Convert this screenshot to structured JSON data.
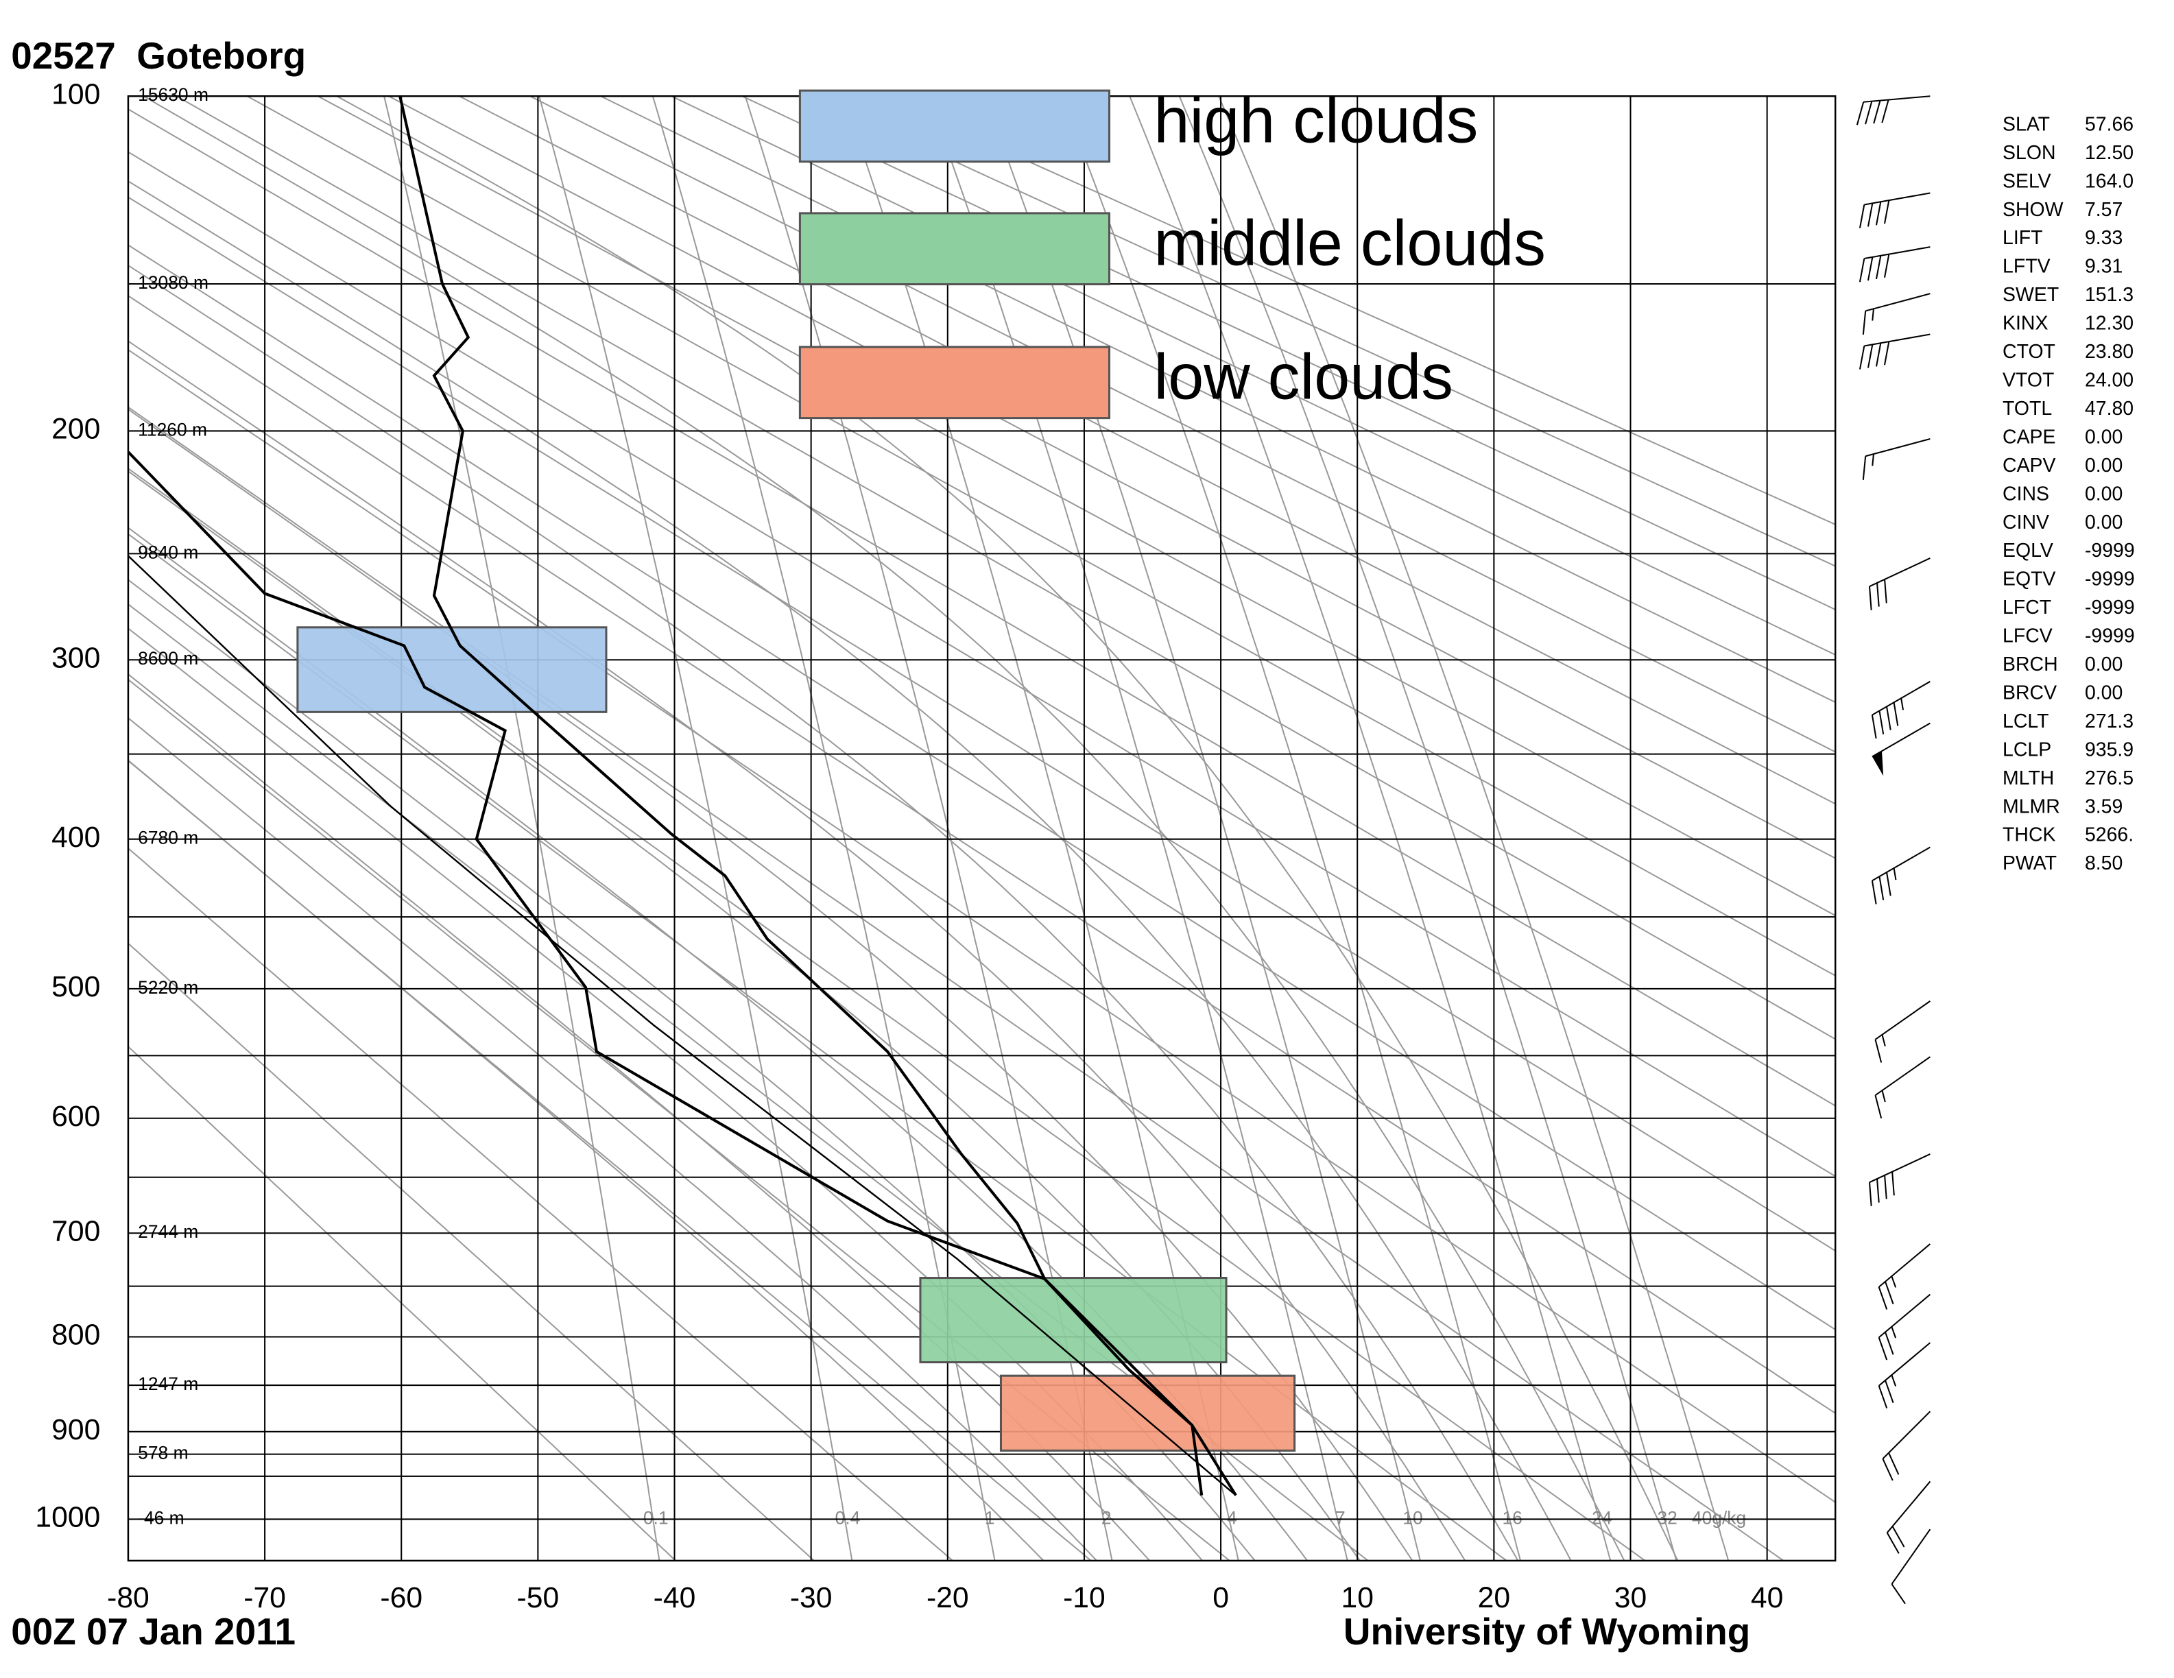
{
  "chart_data": {
    "type": "sounding",
    "title": "02527  Goteborg",
    "date": "00Z 07 Jan 2011",
    "source": "University of Wyoming",
    "xlim": [
      -80,
      45
    ],
    "xticks": [
      -80,
      -70,
      -60,
      -50,
      -40,
      -30,
      -20,
      -10,
      0,
      10,
      20,
      30,
      40
    ],
    "ylim": [
      100,
      1050
    ],
    "yticks": [
      100,
      200,
      300,
      400,
      500,
      600,
      700,
      800,
      900,
      1000
    ],
    "isobars": [
      150,
      250,
      350,
      450,
      550,
      650,
      750,
      850,
      925,
      950
    ],
    "heights": [
      {
        "p": 100,
        "label": "15630 m"
      },
      {
        "p": 150,
        "label": "13080 m"
      },
      {
        "p": 200,
        "label": "11260 m"
      },
      {
        "p": 250,
        "label": "9840 m"
      },
      {
        "p": 300,
        "label": "8600 m"
      },
      {
        "p": 400,
        "label": "6780 m"
      },
      {
        "p": 500,
        "label": "5220 m"
      },
      {
        "p": 700,
        "label": "2744 m"
      },
      {
        "p": 850,
        "label": "1247 m"
      },
      {
        "p": 925,
        "label": "578 m"
      },
      {
        "p": 1000,
        "label": "-46 m"
      }
    ],
    "mixing_ratios": [
      0.1,
      0.4,
      1,
      2,
      4,
      7,
      10,
      16,
      24,
      32,
      {
        "value": 40,
        "label": "40g/kg"
      }
    ],
    "dry_adiabats": [
      230,
      240,
      250,
      260,
      270,
      280,
      290,
      300,
      310,
      320,
      330,
      340,
      350,
      360,
      370,
      380,
      390,
      400,
      410,
      420,
      430,
      440,
      450,
      460,
      470,
      480
    ],
    "moist_adiabats": [
      -16,
      -12,
      -8,
      -4,
      0,
      4,
      8,
      12,
      16,
      20,
      24,
      28,
      32
    ],
    "series": [
      {
        "color": "#000000",
        "p": [
          972,
          893,
          841,
          743,
          691,
          630,
          547,
          465,
          423,
          397,
          325,
          293,
          269,
          200,
          180,
          167,
          150,
          100
        ],
        "values": [
          1.1,
          -2.1,
          -5.7,
          -12.9,
          -14.9,
          -19.0,
          -24.4,
          -33.2,
          -36.3,
          -40.2,
          -50.6,
          -55.7,
          -57.6,
          -55.5,
          -57.6,
          -55.1,
          -57.0,
          -60.1
        ]
      },
      {
        "color": "#000000",
        "p": [
          972,
          893,
          834,
          743,
          689,
          547,
          499,
          400,
          337,
          314,
          293,
          268,
          208
        ],
        "values": [
          -1.4,
          -2.1,
          -6.7,
          -12.9,
          -24.4,
          -45.7,
          -46.5,
          -54.5,
          -52.4,
          -58.3,
          -59.8,
          -70.0,
          -80.0
        ]
      },
      {
        "color": "#000000",
        "p": [
          972,
          724,
          527,
          380,
          251
        ],
        "values": [
          1.1,
          -19.3,
          -41.5,
          -60.8,
          -80.0
        ]
      }
    ],
    "clouds": [
      {
        "name": "high clouds",
        "color": "#a4c6ea",
        "tlim": [
          -67.6,
          -45.0
        ],
        "plim": [
          284,
          327
        ]
      },
      {
        "name": "middle clouds",
        "color": "#8dcf9e",
        "tlim": [
          -22.0,
          0.4
        ],
        "plim": [
          742,
          826
        ]
      },
      {
        "name": "low clouds",
        "color": "#f4997b",
        "tlim": [
          -16.1,
          5.4
        ],
        "plim": [
          840,
          921
        ]
      }
    ],
    "winds": {
      "p": [
        100,
        124,
        139,
        153,
        166,
        203,
        252,
        311,
        333,
        405,
        509,
        551,
        630,
        710,
        758,
        806,
        878,
        956,
        1012
      ],
      "direction": [
        265,
        260,
        260,
        255,
        260,
        255,
        245,
        240,
        240,
        240,
        235,
        235,
        245,
        230,
        230,
        230,
        225,
        220,
        215
      ],
      "speed": [
        40,
        40,
        40,
        15,
        40,
        15,
        30,
        45,
        50,
        35,
        15,
        15,
        40,
        25,
        25,
        25,
        20,
        20,
        10
      ]
    },
    "indices": [
      {
        "label": "SLAT",
        "value": "57.66"
      },
      {
        "label": "SLON",
        "value": "12.50"
      },
      {
        "label": "SELV",
        "value": "164.0"
      },
      {
        "label": "SHOW",
        "value": "7.57"
      },
      {
        "label": "LIFT",
        "value": "9.33"
      },
      {
        "label": "LFTV",
        "value": "9.31"
      },
      {
        "label": "SWET",
        "value": "151.3"
      },
      {
        "label": "KINX",
        "value": "12.30"
      },
      {
        "label": "CTOT",
        "value": "23.80"
      },
      {
        "label": "VTOT",
        "value": "24.00"
      },
      {
        "label": "TOTL",
        "value": "47.80"
      },
      {
        "label": "CAPE",
        "value": "0.00"
      },
      {
        "label": "CAPV",
        "value": "0.00"
      },
      {
        "label": "CINS",
        "value": "0.00"
      },
      {
        "label": "CINV",
        "value": "0.00"
      },
      {
        "label": "EQLV",
        "value": "-9999"
      },
      {
        "label": "EQTV",
        "value": "-9999"
      },
      {
        "label": "LFCT",
        "value": "-9999"
      },
      {
        "label": "LFCV",
        "value": "-9999"
      },
      {
        "label": "BRCH",
        "value": "0.00"
      },
      {
        "label": "BRCV",
        "value": "0.00"
      },
      {
        "label": "LCLT",
        "value": "271.3"
      },
      {
        "label": "LCLP",
        "value": "935.9"
      },
      {
        "label": "MLTH",
        "value": "276.5"
      },
      {
        "label": "MLMR",
        "value": "3.59"
      },
      {
        "label": "THCK",
        "value": "5266."
      },
      {
        "label": "PWAT",
        "value": "8.50"
      }
    ]
  }
}
